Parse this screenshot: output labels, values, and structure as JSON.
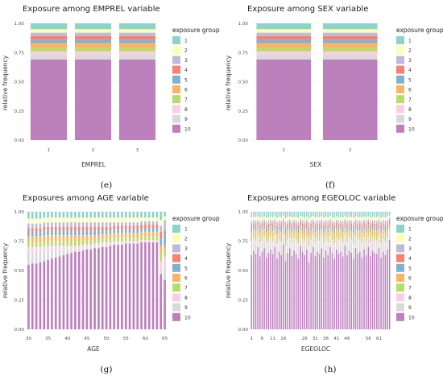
{
  "legend_title": "exposure group",
  "groups": [
    "1",
    "2",
    "3",
    "4",
    "5",
    "6",
    "7",
    "8",
    "9",
    "10"
  ],
  "group_colors": [
    "#8dd3c7",
    "#ffffb3",
    "#bebada",
    "#fb8072",
    "#80b1d3",
    "#fdb462",
    "#b3de69",
    "#fccde5",
    "#d9d9d9",
    "#bc80bd"
  ],
  "chart_data": [
    {
      "type": "bar",
      "stacked": true,
      "title": "Exposure among EMPREL variable",
      "xlabel": "EMPREL",
      "ylabel": "relative frequency",
      "caption": "(e)",
      "categories": [
        "1",
        "2",
        "3"
      ],
      "ylim": [
        0,
        1
      ],
      "yticks": [
        "0.00",
        "0.25",
        "0.50",
        "0.75",
        "1.00"
      ],
      "values": [
        [
          0.05,
          0.03,
          0.03,
          0.03,
          0.03,
          0.04,
          0.03,
          0.03,
          0.04,
          0.69
        ],
        [
          0.05,
          0.03,
          0.03,
          0.03,
          0.03,
          0.04,
          0.03,
          0.03,
          0.04,
          0.69
        ],
        [
          0.05,
          0.03,
          0.03,
          0.03,
          0.03,
          0.04,
          0.03,
          0.03,
          0.04,
          0.69
        ]
      ]
    },
    {
      "type": "bar",
      "stacked": true,
      "title": "Exposure among SEX variable",
      "xlabel": "SEX",
      "ylabel": "relative frequency",
      "caption": "(f)",
      "categories": [
        "1",
        "2"
      ],
      "ylim": [
        0,
        1
      ],
      "yticks": [
        "0.00",
        "0.25",
        "0.50",
        "0.75",
        "1.00"
      ],
      "values": [
        [
          0.05,
          0.03,
          0.03,
          0.03,
          0.03,
          0.04,
          0.03,
          0.03,
          0.04,
          0.69
        ],
        [
          0.05,
          0.03,
          0.03,
          0.03,
          0.03,
          0.04,
          0.03,
          0.03,
          0.04,
          0.69
        ]
      ]
    },
    {
      "type": "bar",
      "stacked": true,
      "title": "Exposures among AGE variable",
      "xlabel": "AGE",
      "ylabel": "relative frequency",
      "caption": "(g)",
      "x_start": 30,
      "x_end": 65,
      "xticks": [
        "30",
        "35",
        "40",
        "45",
        "50",
        "55",
        "60",
        "65"
      ],
      "ylim": [
        0,
        1
      ],
      "yticks": [
        "0.00",
        "0.25",
        "0.50",
        "0.75",
        "1.00"
      ],
      "values": [
        [
          0.06,
          0.04,
          0.04,
          0.03,
          0.04,
          0.05,
          0.04,
          0.04,
          0.11,
          0.55
        ],
        [
          0.06,
          0.04,
          0.04,
          0.03,
          0.04,
          0.05,
          0.04,
          0.04,
          0.1,
          0.56
        ],
        [
          0.06,
          0.04,
          0.04,
          0.03,
          0.04,
          0.05,
          0.04,
          0.04,
          0.1,
          0.56
        ],
        [
          0.06,
          0.04,
          0.04,
          0.03,
          0.04,
          0.05,
          0.04,
          0.04,
          0.09,
          0.57
        ],
        [
          0.05,
          0.04,
          0.04,
          0.03,
          0.04,
          0.05,
          0.04,
          0.04,
          0.09,
          0.58
        ],
        [
          0.05,
          0.04,
          0.04,
          0.03,
          0.04,
          0.05,
          0.04,
          0.04,
          0.08,
          0.59
        ],
        [
          0.05,
          0.04,
          0.04,
          0.03,
          0.04,
          0.05,
          0.04,
          0.04,
          0.07,
          0.6
        ],
        [
          0.05,
          0.04,
          0.04,
          0.03,
          0.04,
          0.05,
          0.04,
          0.04,
          0.06,
          0.61
        ],
        [
          0.05,
          0.04,
          0.04,
          0.03,
          0.04,
          0.05,
          0.04,
          0.04,
          0.05,
          0.62
        ],
        [
          0.05,
          0.04,
          0.04,
          0.03,
          0.04,
          0.05,
          0.04,
          0.04,
          0.04,
          0.63
        ],
        [
          0.05,
          0.04,
          0.04,
          0.03,
          0.04,
          0.05,
          0.04,
          0.04,
          0.03,
          0.64
        ],
        [
          0.05,
          0.04,
          0.04,
          0.03,
          0.04,
          0.05,
          0.04,
          0.03,
          0.03,
          0.65
        ],
        [
          0.05,
          0.04,
          0.04,
          0.03,
          0.04,
          0.05,
          0.04,
          0.03,
          0.02,
          0.66
        ],
        [
          0.05,
          0.04,
          0.04,
          0.03,
          0.04,
          0.05,
          0.04,
          0.03,
          0.02,
          0.66
        ],
        [
          0.05,
          0.04,
          0.04,
          0.03,
          0.04,
          0.05,
          0.03,
          0.03,
          0.02,
          0.67
        ],
        [
          0.05,
          0.04,
          0.04,
          0.03,
          0.04,
          0.05,
          0.03,
          0.03,
          0.01,
          0.68
        ],
        [
          0.05,
          0.04,
          0.04,
          0.03,
          0.04,
          0.05,
          0.03,
          0.03,
          0.01,
          0.68
        ],
        [
          0.05,
          0.04,
          0.04,
          0.03,
          0.04,
          0.04,
          0.03,
          0.03,
          0.01,
          0.69
        ],
        [
          0.05,
          0.04,
          0.04,
          0.03,
          0.04,
          0.04,
          0.03,
          0.03,
          0.01,
          0.69
        ],
        [
          0.05,
          0.04,
          0.04,
          0.03,
          0.03,
          0.04,
          0.03,
          0.03,
          0.01,
          0.7
        ],
        [
          0.05,
          0.04,
          0.04,
          0.03,
          0.03,
          0.04,
          0.03,
          0.03,
          0.01,
          0.7
        ],
        [
          0.05,
          0.04,
          0.04,
          0.03,
          0.03,
          0.04,
          0.03,
          0.03,
          0.0,
          0.71
        ],
        [
          0.05,
          0.04,
          0.03,
          0.03,
          0.03,
          0.04,
          0.03,
          0.03,
          0.0,
          0.72
        ],
        [
          0.05,
          0.04,
          0.03,
          0.03,
          0.03,
          0.04,
          0.03,
          0.03,
          0.0,
          0.72
        ],
        [
          0.05,
          0.04,
          0.03,
          0.03,
          0.03,
          0.04,
          0.03,
          0.03,
          0.0,
          0.72
        ],
        [
          0.05,
          0.04,
          0.03,
          0.03,
          0.03,
          0.04,
          0.03,
          0.02,
          0.0,
          0.73
        ],
        [
          0.05,
          0.04,
          0.03,
          0.03,
          0.03,
          0.04,
          0.03,
          0.02,
          0.0,
          0.73
        ],
        [
          0.05,
          0.04,
          0.03,
          0.03,
          0.03,
          0.04,
          0.03,
          0.02,
          0.0,
          0.73
        ],
        [
          0.05,
          0.04,
          0.03,
          0.03,
          0.03,
          0.04,
          0.03,
          0.02,
          0.0,
          0.73
        ],
        [
          0.05,
          0.03,
          0.03,
          0.03,
          0.03,
          0.04,
          0.03,
          0.02,
          0.0,
          0.74
        ],
        [
          0.05,
          0.03,
          0.03,
          0.03,
          0.03,
          0.04,
          0.03,
          0.02,
          0.0,
          0.74
        ],
        [
          0.05,
          0.03,
          0.03,
          0.03,
          0.03,
          0.04,
          0.03,
          0.02,
          0.0,
          0.74
        ],
        [
          0.05,
          0.03,
          0.03,
          0.03,
          0.03,
          0.04,
          0.03,
          0.02,
          0.0,
          0.74
        ],
        [
          0.05,
          0.03,
          0.03,
          0.03,
          0.03,
          0.04,
          0.03,
          0.02,
          0.0,
          0.74
        ],
        [
          0.07,
          0.05,
          0.05,
          0.06,
          0.06,
          0.07,
          0.06,
          0.06,
          0.05,
          0.47
        ],
        [
          0.04,
          0.03,
          0.09,
          0.03,
          0.1,
          0.03,
          0.06,
          0.1,
          0.1,
          0.42
        ]
      ]
    },
    {
      "type": "bar",
      "stacked": true,
      "title": "Exposures among EGEOLOC variable",
      "xlabel": "EGEOLOC",
      "ylabel": "relative frequency",
      "caption": "(h)",
      "n_categories": 66,
      "xticks": [
        "1",
        "6",
        "11",
        "16",
        "26",
        "31",
        "36",
        "41",
        "46",
        "56",
        "61"
      ],
      "ylim": [
        0,
        1
      ],
      "yticks": [
        "0.00",
        "0.25",
        "0.50",
        "0.75",
        "1.00"
      ],
      "values_level10": [
        0.63,
        0.67,
        0.64,
        0.7,
        0.62,
        0.66,
        0.69,
        0.61,
        0.65,
        0.68,
        0.64,
        0.7,
        0.6,
        0.66,
        0.63,
        0.72,
        0.58,
        0.65,
        0.69,
        0.62,
        0.67,
        0.64,
        0.6,
        0.71,
        0.66,
        0.63,
        0.68,
        0.57,
        0.65,
        0.7,
        0.62,
        0.66,
        0.64,
        0.69,
        0.61,
        0.67,
        0.63,
        0.7,
        0.65,
        0.6,
        0.68,
        0.64,
        0.66,
        0.62,
        0.71,
        0.63,
        0.67,
        0.65,
        0.6,
        0.69,
        0.64,
        0.66,
        0.61,
        0.68,
        0.63,
        0.7,
        0.62,
        0.67,
        0.65,
        0.64,
        0.69,
        0.61,
        0.66,
        0.63,
        0.68,
        0.76
      ],
      "other_groups_split": [
        0.13,
        0.08,
        0.08,
        0.08,
        0.09,
        0.13,
        0.09,
        0.09,
        0.23
      ]
    }
  ]
}
